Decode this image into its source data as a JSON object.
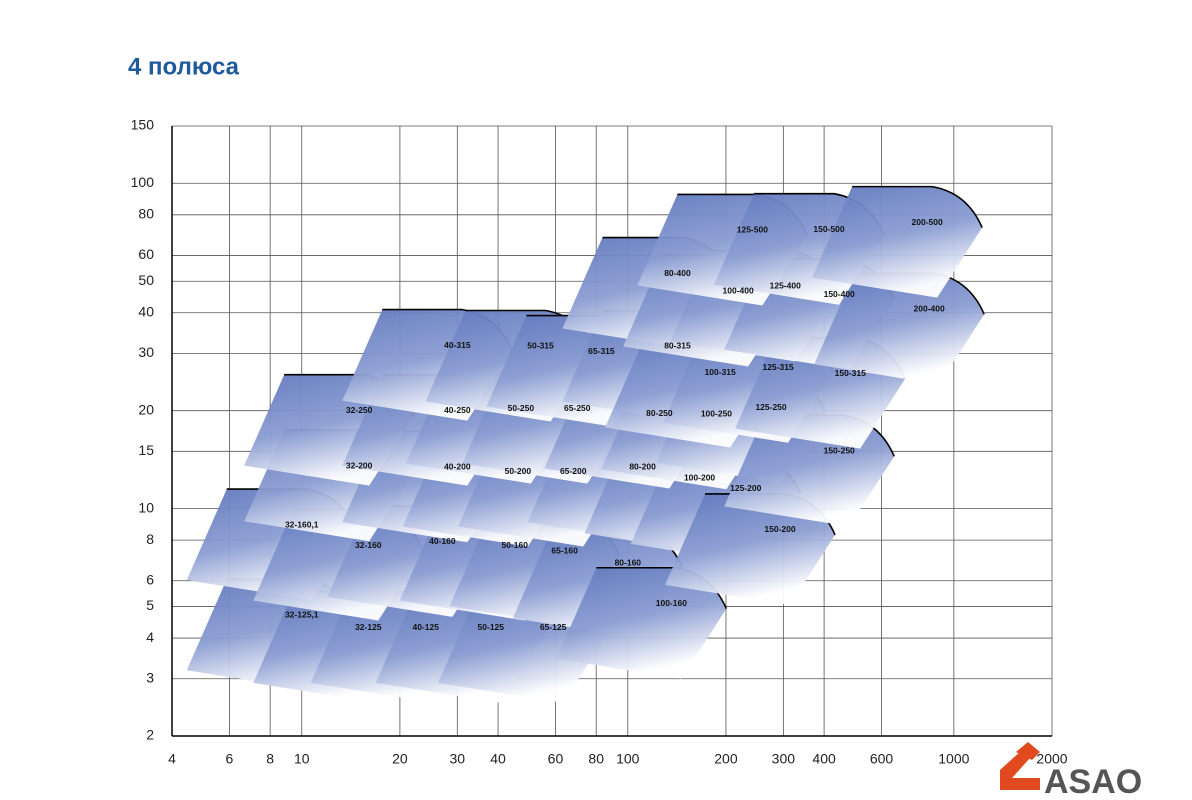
{
  "chart_data": {
    "type": "region",
    "title": "4 полюса",
    "log_x": true,
    "log_y": true,
    "grid": true,
    "color": "#5f77bd",
    "xlim": [
      4,
      2000
    ],
    "ylim": [
      2,
      150
    ],
    "xticks": [
      4,
      6,
      8,
      10,
      20,
      30,
      40,
      60,
      80,
      100,
      200,
      300,
      400,
      600,
      1000,
      2000
    ],
    "yticks": [
      2,
      3,
      4,
      5,
      6,
      8,
      10,
      15,
      20,
      30,
      40,
      50,
      60,
      80,
      100,
      150
    ],
    "regions": [
      {
        "label": "32-125,1",
        "q": 10,
        "h": 4.7
      },
      {
        "label": "32-125",
        "q": 16,
        "h": 4.3
      },
      {
        "label": "40-125",
        "q": 24,
        "h": 4.3
      },
      {
        "label": "50-125",
        "q": 38,
        "h": 4.3
      },
      {
        "label": "65-125",
        "q": 59,
        "h": 4.3
      },
      {
        "label": "32-160,1",
        "q": 10,
        "h": 8.9
      },
      {
        "label": "32-160",
        "q": 16,
        "h": 7.7
      },
      {
        "label": "40-160",
        "q": 27,
        "h": 7.9
      },
      {
        "label": "50-160",
        "q": 45,
        "h": 7.7
      },
      {
        "label": "65-160",
        "q": 64,
        "h": 7.4
      },
      {
        "label": "80-160",
        "q": 100,
        "h": 6.8
      },
      {
        "label": "100-160",
        "q": 136,
        "h": 5.1
      },
      {
        "label": "32-200",
        "q": 15,
        "h": 13.5
      },
      {
        "label": "40-200",
        "q": 30,
        "h": 13.4
      },
      {
        "label": "50-200",
        "q": 46,
        "h": 13
      },
      {
        "label": "65-200",
        "q": 68,
        "h": 13
      },
      {
        "label": "80-200",
        "q": 111,
        "h": 13.4
      },
      {
        "label": "100-200",
        "q": 166,
        "h": 12.4
      },
      {
        "label": "125-200",
        "q": 230,
        "h": 11.5
      },
      {
        "label": "150-200",
        "q": 293,
        "h": 8.6
      },
      {
        "label": "32-250",
        "q": 15,
        "h": 20
      },
      {
        "label": "40-250",
        "q": 30,
        "h": 20
      },
      {
        "label": "50-250",
        "q": 47,
        "h": 20.3
      },
      {
        "label": "65-250",
        "q": 70,
        "h": 20.3
      },
      {
        "label": "80-250",
        "q": 125,
        "h": 19.6
      },
      {
        "label": "100-250",
        "q": 187,
        "h": 19.5
      },
      {
        "label": "125-250",
        "q": 275,
        "h": 20.4
      },
      {
        "label": "150-250",
        "q": 445,
        "h": 15
      },
      {
        "label": "40-315",
        "q": 30,
        "h": 31.7
      },
      {
        "label": "50-315",
        "q": 54,
        "h": 31.5
      },
      {
        "label": "65-315",
        "q": 83,
        "h": 30.4
      },
      {
        "label": "80-315",
        "q": 142,
        "h": 31.5
      },
      {
        "label": "100-315",
        "q": 192,
        "h": 26.2
      },
      {
        "label": "125-315",
        "q": 289,
        "h": 27.1
      },
      {
        "label": "150-315",
        "q": 481,
        "h": 26
      },
      {
        "label": "80-400",
        "q": 142,
        "h": 52.8
      },
      {
        "label": "100-400",
        "q": 218,
        "h": 46.5
      },
      {
        "label": "125-400",
        "q": 304,
        "h": 48.2
      },
      {
        "label": "150-400",
        "q": 445,
        "h": 45.5
      },
      {
        "label": "200-400",
        "q": 840,
        "h": 41
      },
      {
        "label": "125-500",
        "q": 241,
        "h": 71.6
      },
      {
        "label": "150-500",
        "q": 414,
        "h": 72
      },
      {
        "label": "200-500",
        "q": 828,
        "h": 75.7
      }
    ]
  },
  "logo": {
    "text": "ASAO"
  }
}
